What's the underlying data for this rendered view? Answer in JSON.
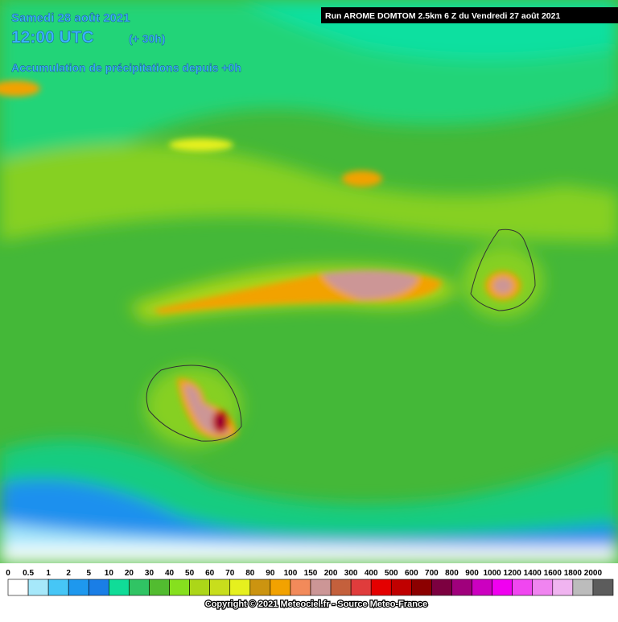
{
  "header": {
    "date": "Samedi 28 août 2021",
    "time": "12:00 UTC",
    "lead": "(+ 30h)",
    "product": "Accumulation de précipitations depuis +0h",
    "run": "Run AROME DOMTOM 2.5km 6 Z du Vendredi 27 août 2021"
  },
  "legend": {
    "items": [
      {
        "label": "0",
        "color": "#ffffff"
      },
      {
        "label": "0.5",
        "color": "#a6e8fa"
      },
      {
        "label": "1",
        "color": "#46c6f6"
      },
      {
        "label": "2",
        "color": "#1e98ee"
      },
      {
        "label": "5",
        "color": "#1a7ee6"
      },
      {
        "label": "10",
        "color": "#10dc98"
      },
      {
        "label": "20",
        "color": "#30c464"
      },
      {
        "label": "30",
        "color": "#52bc30"
      },
      {
        "label": "40",
        "color": "#86e01e"
      },
      {
        "label": "50",
        "color": "#acd618"
      },
      {
        "label": "60",
        "color": "#c8de1c"
      },
      {
        "label": "70",
        "color": "#e6f01e"
      },
      {
        "label": "80",
        "color": "#cc9410"
      },
      {
        "label": "90",
        "color": "#f2a200"
      },
      {
        "label": "100",
        "color": "#f28a5a"
      },
      {
        "label": "150",
        "color": "#cc9696"
      },
      {
        "label": "200",
        "color": "#c4603c"
      },
      {
        "label": "300",
        "color": "#e03c3c"
      },
      {
        "label": "400",
        "color": "#e40000"
      },
      {
        "label": "500",
        "color": "#c00000"
      },
      {
        "label": "600",
        "color": "#8c0000"
      },
      {
        "label": "700",
        "color": "#7c0040"
      },
      {
        "label": "800",
        "color": "#a0007c"
      },
      {
        "label": "900",
        "color": "#cc00c0"
      },
      {
        "label": "1000",
        "color": "#f000f0"
      },
      {
        "label": "1200",
        "color": "#f046f0"
      },
      {
        "label": "1400",
        "color": "#f084f0"
      },
      {
        "label": "1600",
        "color": "#f0b4f0"
      },
      {
        "label": "1800",
        "color": "#bcbcbc"
      },
      {
        "label": "2000",
        "color": "#5c5c5c"
      }
    ]
  },
  "footer": {
    "copyright": "Copyright © 2021 Meteociel.fr - Source Meteo-France"
  }
}
